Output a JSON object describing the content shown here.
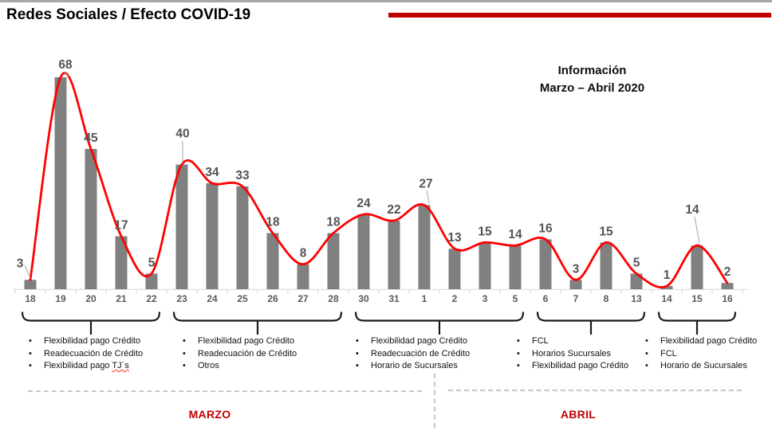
{
  "header": {
    "title": "Redes Sociales / Efecto COVID-19"
  },
  "info_box": {
    "line1": "Información",
    "line2": "Marzo – Abril 2020"
  },
  "glyphs": {
    "bullet": "•"
  },
  "colors": {
    "bar": "#808080",
    "line": "#FF0000",
    "value_label": "#545454",
    "axis": "#D9D9D9",
    "tick_label": "#595959",
    "bracket": "#1a1a1a",
    "accent_red": "#C00000",
    "leader": "#a6a6a6"
  },
  "chart_data": {
    "type": "bar",
    "overlay": "smooth-line",
    "categories": [
      "18",
      "19",
      "20",
      "21",
      "22",
      "23",
      "24",
      "25",
      "26",
      "27",
      "28",
      "30",
      "31",
      "1",
      "2",
      "3",
      "5",
      "6",
      "7",
      "8",
      "13",
      "14",
      "15",
      "16"
    ],
    "values": [
      3,
      68,
      45,
      17,
      5,
      40,
      34,
      33,
      18,
      8,
      18,
      24,
      22,
      27,
      13,
      15,
      14,
      16,
      3,
      15,
      5,
      1,
      14,
      2
    ],
    "ylim": [
      0,
      68
    ],
    "grid": false,
    "legend": "none",
    "title": "Redes Sociales / Efecto COVID-19",
    "xlabel": "",
    "ylabel": "",
    "month_groups": [
      "MARZO",
      "ABRIL"
    ],
    "annotations": [
      {
        "covers": [
          0,
          4
        ],
        "items": [
          "Flexibilidad pago Crédito",
          "Readecuación de Crédito"
        ],
        "last_item_prefix": "Flexibilidad pago ",
        "last_item_word": "TJ´s"
      },
      {
        "covers": [
          5,
          10
        ],
        "items": [
          "Flexibilidad pago Crédito",
          "Readecuación de Crédito",
          "Otros"
        ]
      },
      {
        "covers": [
          11,
          16
        ],
        "items": [
          "Flexibilidad pago Crédito",
          "Readecuación de Crédito",
          "Horario de Sucursales"
        ]
      },
      {
        "covers": [
          17,
          20
        ],
        "items": [
          "FCL",
          "Horarios Sucursales",
          "Flexibilidad pago Crédito"
        ]
      },
      {
        "covers": [
          21,
          23
        ],
        "items": [
          "Flexibilidad pago Crédito",
          "FCL",
          "Horario de Sucursales"
        ]
      }
    ]
  }
}
